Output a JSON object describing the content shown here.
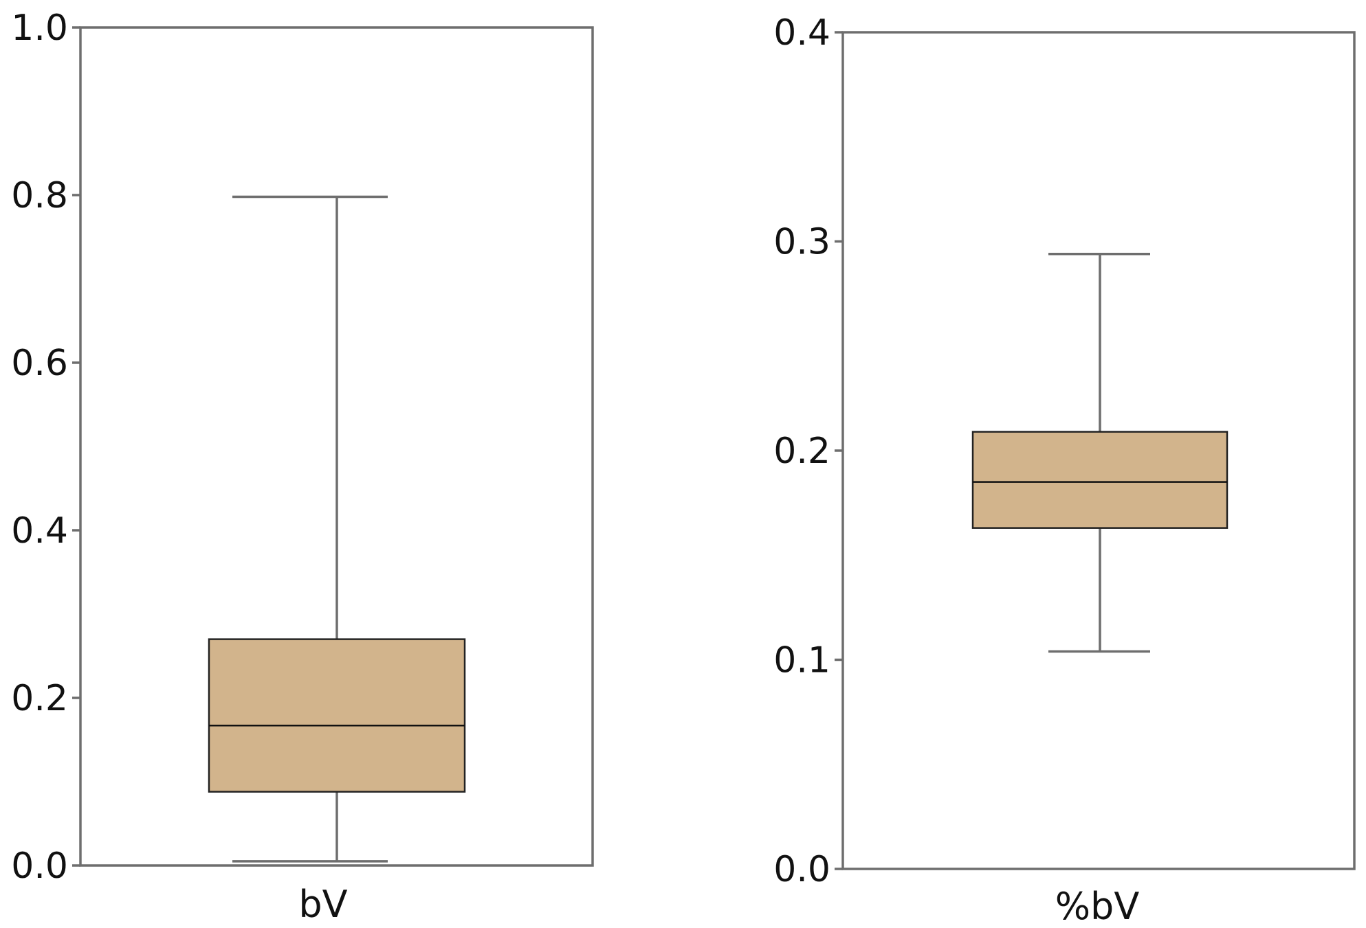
{
  "chart_data": [
    {
      "type": "box",
      "category": "bV",
      "xlabel": "bV",
      "ylim": [
        0.0,
        1.0
      ],
      "yticks": [
        "0.0",
        "0.2",
        "0.4",
        "0.6",
        "0.8",
        "1.0"
      ],
      "ytick_values": [
        0.0,
        0.2,
        0.4,
        0.6,
        0.8,
        1.0
      ],
      "stats": {
        "min": 0.005,
        "q1": 0.088,
        "median": 0.167,
        "q3": 0.27,
        "max": 0.798
      },
      "box_color": "#d2b48c"
    },
    {
      "type": "box",
      "category": "%bV",
      "xlabel": "%bV",
      "ylim": [
        0.0,
        0.4
      ],
      "yticks": [
        "0.0",
        "0.1",
        "0.2",
        "0.3",
        "0.4"
      ],
      "ytick_values": [
        0.0,
        0.1,
        0.2,
        0.3,
        0.4
      ],
      "stats": {
        "min": 0.104,
        "q1": 0.163,
        "median": 0.185,
        "q3": 0.209,
        "max": 0.294
      },
      "box_color": "#d2b48c"
    }
  ]
}
